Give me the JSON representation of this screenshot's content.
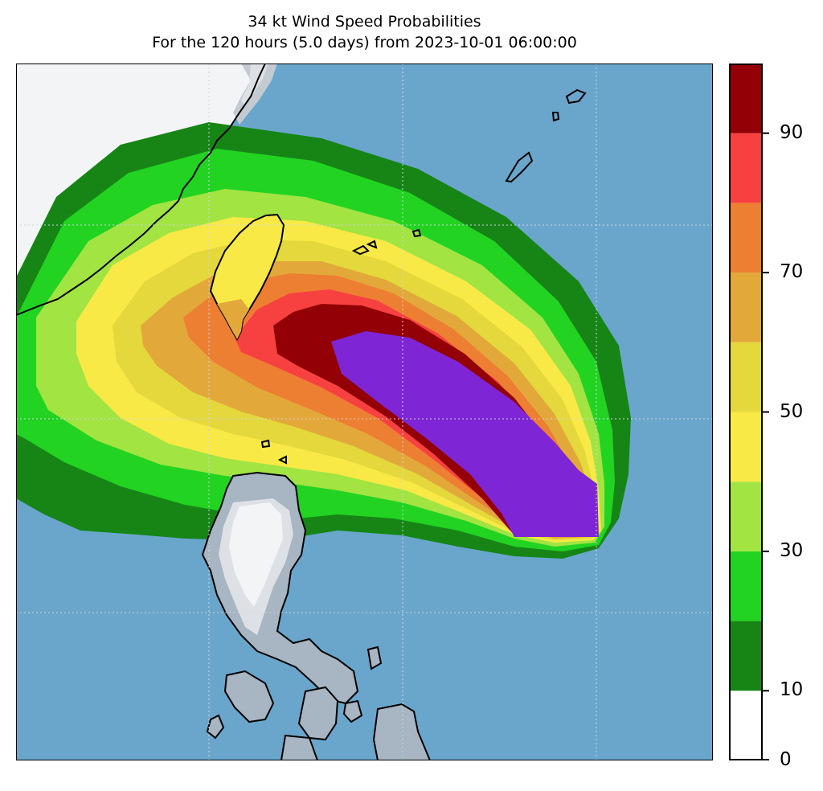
{
  "figure": {
    "title_line1": "34 kt Wind Speed Probabilities",
    "title_line2": "For the 120 hours (5.0 days) from 2023-10-01 06:00:00"
  },
  "colors": {
    "ocean": "#6aa6cc",
    "land_unaffected": "#f3f4f6",
    "terrain_shades": [
      "#f3f4f6",
      "#dde1e6",
      "#c3cad2",
      "#a8b5c2",
      "#96a6b6"
    ],
    "coastline": "#000000"
  },
  "colorbar": {
    "levels": [
      0,
      10,
      20,
      30,
      40,
      50,
      60,
      70,
      80,
      90,
      100
    ],
    "band_colors": [
      "#ffffff",
      "#168516",
      "#22d322",
      "#a2e442",
      "#f9e946",
      "#e4d83c",
      "#e3a83a",
      "#ed7f32",
      "#f74141",
      "#930006",
      "#7e25d6"
    ],
    "tick_labels": [
      "0",
      "10",
      "30",
      "50",
      "70",
      "90"
    ]
  },
  "chart_data": {
    "type": "filled-contour",
    "variable": "34 kt wind speed probability (%)",
    "levels": [
      0,
      10,
      20,
      30,
      40,
      50,
      60,
      70,
      80,
      90,
      100
    ],
    "colorbar_ticks": [
      0,
      10,
      30,
      50,
      70,
      90
    ],
    "region": [
      "Taiwan",
      "Luzon",
      "Ryukyu Islands",
      "southeast China coast"
    ],
    "max_probability_band": "90-100",
    "grid": true
  }
}
